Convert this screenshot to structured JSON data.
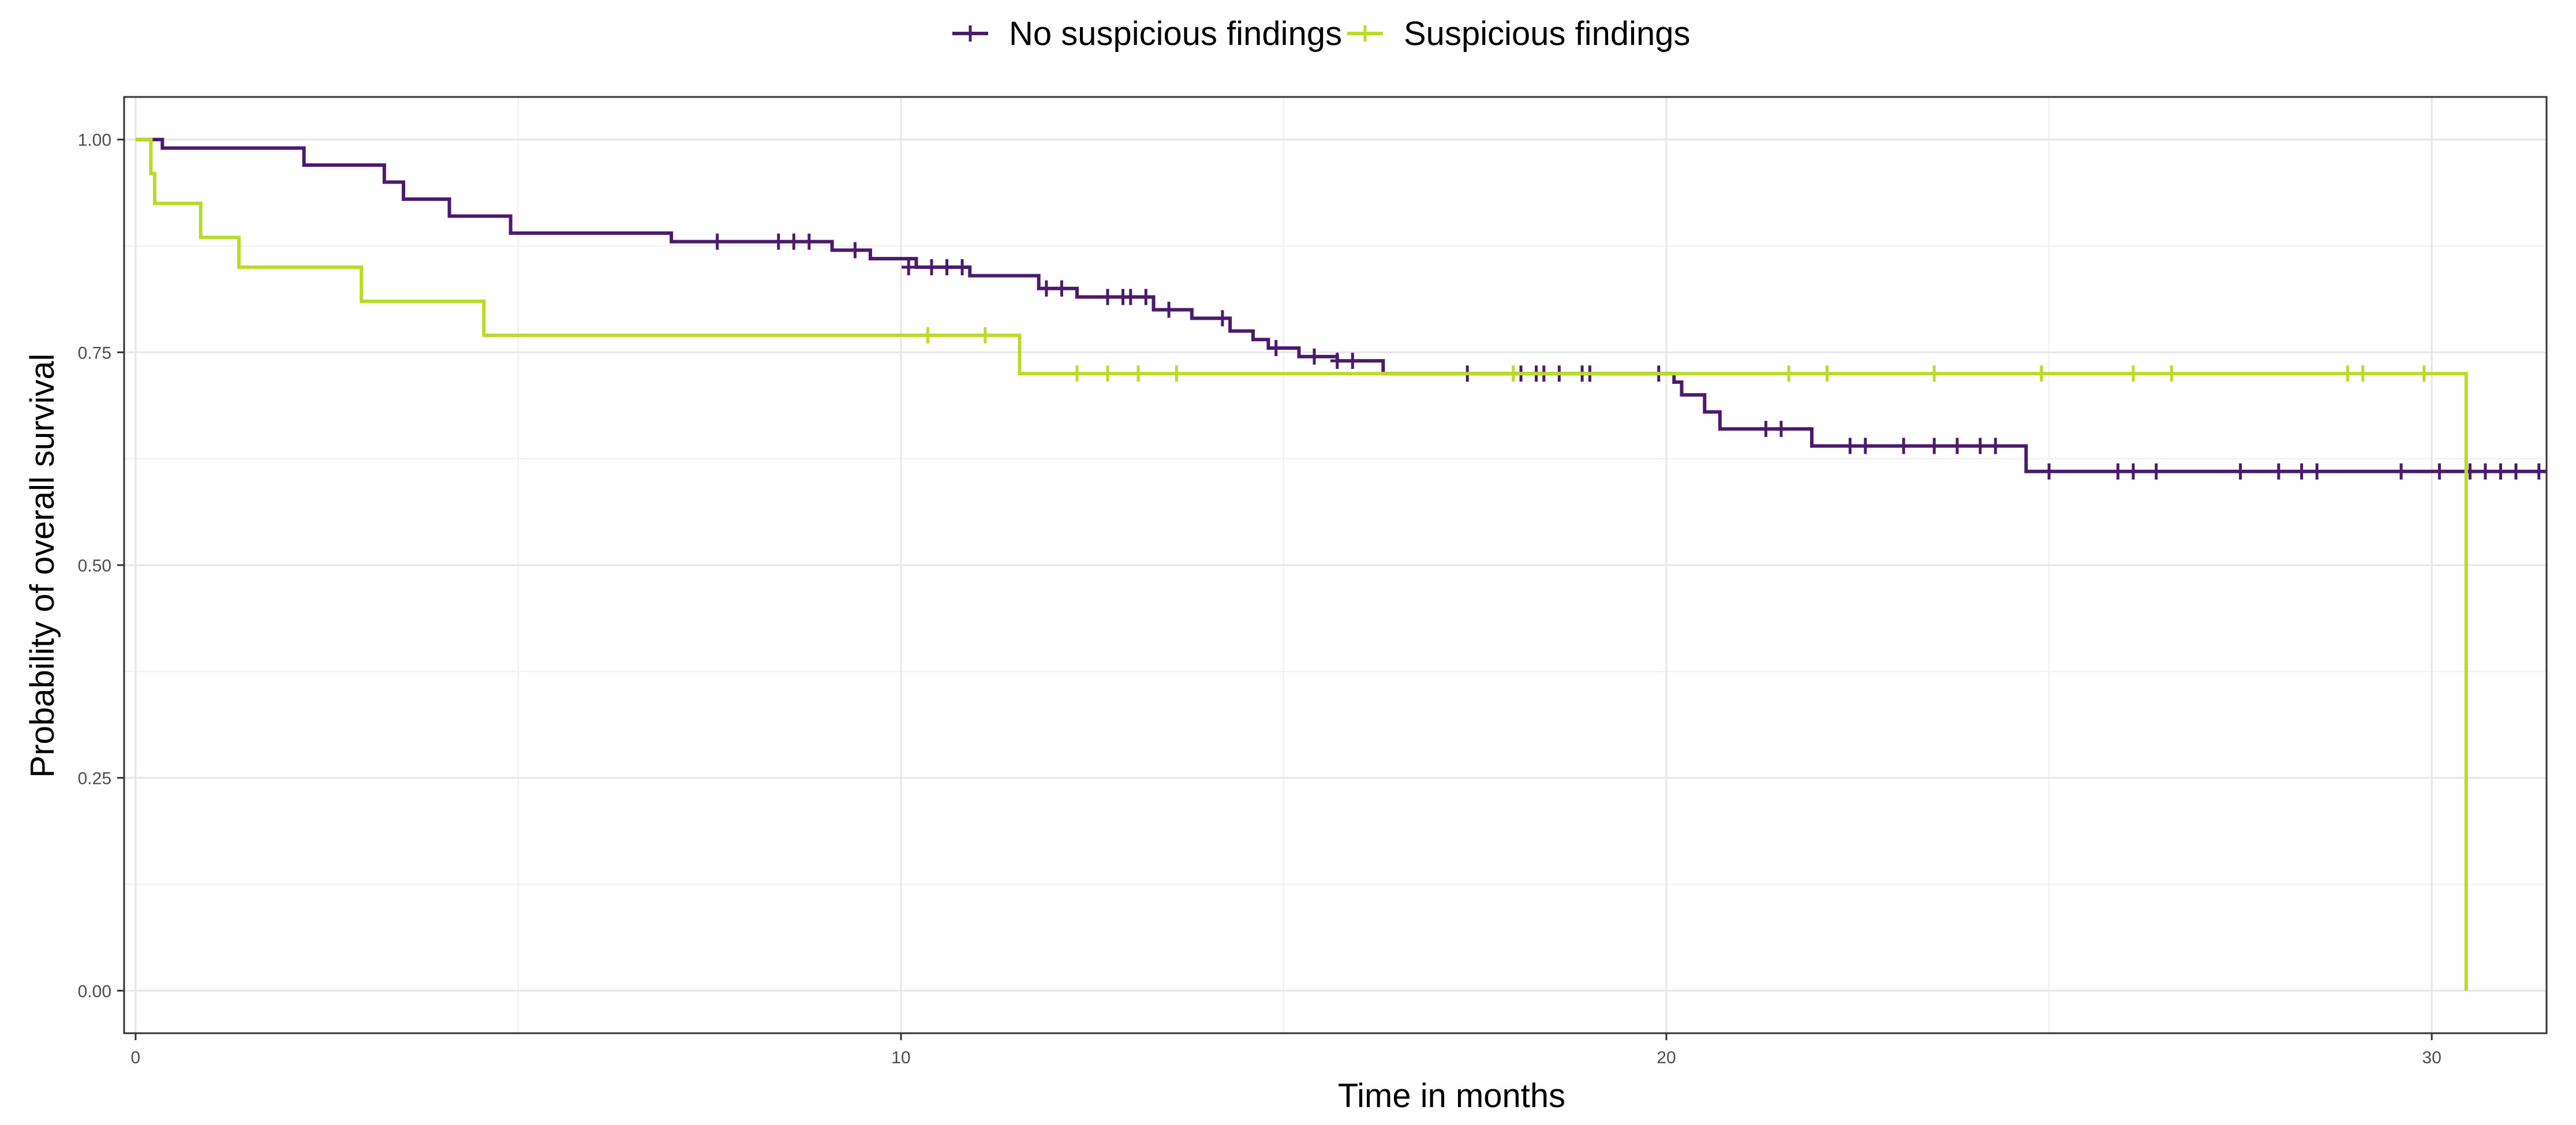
{
  "chart_data": {
    "type": "line",
    "xlabel": "Time in months",
    "ylabel": "Probability of overall survival",
    "xlim": [
      -0.15,
      31.5
    ],
    "ylim": [
      -0.05,
      1.05
    ],
    "x_ticks": [
      {
        "value": 0,
        "label": "0"
      },
      {
        "value": 10,
        "label": "10"
      },
      {
        "value": 20,
        "label": "20"
      },
      {
        "value": 30,
        "label": "30"
      }
    ],
    "y_ticks": [
      {
        "value": 0,
        "label": "0.00"
      },
      {
        "value": 0.25,
        "label": "0.25"
      },
      {
        "value": 0.5,
        "label": "0.50"
      },
      {
        "value": 0.75,
        "label": "0.75"
      },
      {
        "value": 1.0,
        "label": "1.00"
      }
    ],
    "grid": true,
    "legend_position": "top",
    "series": [
      {
        "name": "No suspicious findings",
        "color": "#4b1a6b",
        "steps": [
          [
            0,
            1.0
          ],
          [
            0.35,
            0.99
          ],
          [
            2.2,
            0.97
          ],
          [
            3.25,
            0.95
          ],
          [
            3.5,
            0.93
          ],
          [
            4.1,
            0.91
          ],
          [
            4.9,
            0.89
          ],
          [
            7.0,
            0.88
          ],
          [
            9.1,
            0.87
          ],
          [
            9.6,
            0.86
          ],
          [
            10.2,
            0.85
          ],
          [
            10.9,
            0.84
          ],
          [
            11.8,
            0.825
          ],
          [
            12.3,
            0.815
          ],
          [
            13.3,
            0.8
          ],
          [
            13.8,
            0.79
          ],
          [
            14.3,
            0.775
          ],
          [
            14.6,
            0.765
          ],
          [
            14.8,
            0.755
          ],
          [
            15.2,
            0.745
          ],
          [
            15.7,
            0.74
          ],
          [
            16.3,
            0.725
          ],
          [
            20.1,
            0.715
          ],
          [
            20.2,
            0.7
          ],
          [
            20.5,
            0.68
          ],
          [
            20.7,
            0.66
          ],
          [
            21.9,
            0.64
          ],
          [
            24.7,
            0.61
          ],
          [
            31.5,
            0.61
          ]
        ],
        "censors": [
          [
            7.6,
            0.88
          ],
          [
            8.4,
            0.88
          ],
          [
            8.6,
            0.88
          ],
          [
            8.8,
            0.88
          ],
          [
            9.4,
            0.87
          ],
          [
            10.1,
            0.85
          ],
          [
            10.4,
            0.85
          ],
          [
            10.6,
            0.85
          ],
          [
            10.8,
            0.85
          ],
          [
            11.9,
            0.825
          ],
          [
            12.1,
            0.825
          ],
          [
            12.7,
            0.815
          ],
          [
            12.9,
            0.815
          ],
          [
            13.0,
            0.815
          ],
          [
            13.2,
            0.815
          ],
          [
            13.5,
            0.8
          ],
          [
            14.2,
            0.79
          ],
          [
            14.9,
            0.755
          ],
          [
            15.4,
            0.745
          ],
          [
            15.7,
            0.74
          ],
          [
            15.9,
            0.74
          ],
          [
            17.4,
            0.725
          ],
          [
            18.1,
            0.725
          ],
          [
            18.3,
            0.725
          ],
          [
            18.4,
            0.725
          ],
          [
            18.6,
            0.725
          ],
          [
            18.9,
            0.725
          ],
          [
            19.0,
            0.725
          ],
          [
            19.9,
            0.725
          ],
          [
            21.3,
            0.66
          ],
          [
            21.5,
            0.66
          ],
          [
            22.4,
            0.64
          ],
          [
            22.6,
            0.64
          ],
          [
            23.1,
            0.64
          ],
          [
            23.5,
            0.64
          ],
          [
            23.8,
            0.64
          ],
          [
            24.1,
            0.64
          ],
          [
            24.3,
            0.64
          ],
          [
            25.0,
            0.61
          ],
          [
            25.9,
            0.61
          ],
          [
            26.1,
            0.61
          ],
          [
            26.4,
            0.61
          ],
          [
            27.5,
            0.61
          ],
          [
            28.0,
            0.61
          ],
          [
            28.3,
            0.61
          ],
          [
            28.5,
            0.61
          ],
          [
            29.6,
            0.61
          ],
          [
            30.1,
            0.61
          ],
          [
            30.5,
            0.61
          ],
          [
            30.7,
            0.61
          ],
          [
            30.9,
            0.61
          ],
          [
            31.1,
            0.61
          ],
          [
            31.4,
            0.61
          ]
        ]
      },
      {
        "name": "Suspicious findings",
        "color": "#b8dc28",
        "steps": [
          [
            0,
            1.0
          ],
          [
            0.2,
            0.96
          ],
          [
            0.25,
            0.925
          ],
          [
            0.85,
            0.885
          ],
          [
            1.35,
            0.85
          ],
          [
            2.95,
            0.81
          ],
          [
            4.55,
            0.77
          ],
          [
            11.55,
            0.725
          ],
          [
            30.45,
            0.0
          ]
        ],
        "censors": [
          [
            10.35,
            0.77
          ],
          [
            11.1,
            0.77
          ],
          [
            12.3,
            0.725
          ],
          [
            12.7,
            0.725
          ],
          [
            13.1,
            0.725
          ],
          [
            13.6,
            0.725
          ],
          [
            18.0,
            0.725
          ],
          [
            21.6,
            0.725
          ],
          [
            22.1,
            0.725
          ],
          [
            23.5,
            0.725
          ],
          [
            24.9,
            0.725
          ],
          [
            26.1,
            0.725
          ],
          [
            26.6,
            0.725
          ],
          [
            28.9,
            0.725
          ],
          [
            29.1,
            0.725
          ],
          [
            29.9,
            0.725
          ]
        ]
      }
    ]
  }
}
